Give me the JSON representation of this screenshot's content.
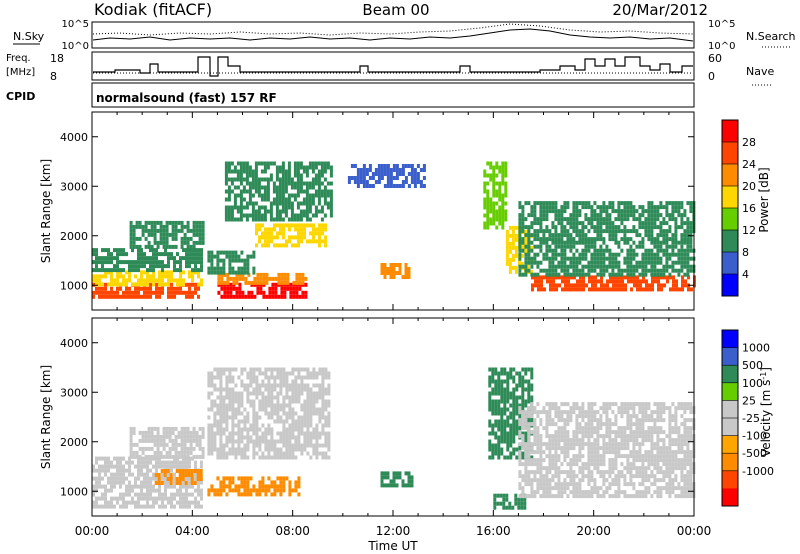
{
  "header": {
    "site": "Kodiak (fitACF)",
    "beam": "Beam 00",
    "date": "20/Mar/2012"
  },
  "summary": {
    "nsky_label": "N.Sky",
    "nsearch_label": "N.Search",
    "freq_label": "Freq.",
    "freq_unit": "[MHz]",
    "nave_label": "Nave",
    "cpid_label": "CPID",
    "cpid_text": "normalsound (fast) 157 RF",
    "noise_ticks": [
      "10^5",
      "10^0"
    ],
    "noise_ticks_right": [
      "10^5",
      "10^0"
    ],
    "freq_ticks": [
      "18",
      "8"
    ],
    "nave_ticks": [
      "60",
      "0"
    ]
  },
  "colors": {
    "power_scale": [
      "#0000ff",
      "#3a5fcd",
      "#2e8b57",
      "#66cd00",
      "#ffd700",
      "#ff8c00",
      "#ff4500",
      "#ff0000"
    ],
    "velocity_scale": [
      "#ff0000",
      "#ff4500",
      "#ff8c00",
      "#ffa500",
      "#c8c8c8",
      "#c8c8c8",
      "#66cd00",
      "#2e8b57",
      "#3a5fcd",
      "#0000ff"
    ]
  },
  "chart_data": [
    {
      "type": "heatmap",
      "title": "",
      "xlabel": "Time UT",
      "ylabel": "Slant Range [km]",
      "xlim": [
        0,
        24
      ],
      "ylim": [
        500,
        4500
      ],
      "x_ticks": [
        "00:00",
        "04:00",
        "08:00",
        "12:00",
        "16:00",
        "20:00",
        "00:00"
      ],
      "y_ticks": [
        "1000",
        "2000",
        "3000",
        "4000"
      ],
      "colorbar": {
        "label": "Power [dB]",
        "ticks": [
          "28",
          "24",
          "20",
          "16",
          "12",
          "8",
          "4"
        ],
        "range": [
          0,
          32
        ]
      },
      "regions": [
        {
          "t0": 0.0,
          "t1": 4.4,
          "r0": 800,
          "r1": 1050,
          "level": 26
        },
        {
          "t0": 0.0,
          "t1": 4.4,
          "r0": 1050,
          "r1": 1300,
          "level": 18
        },
        {
          "t0": 0.0,
          "t1": 4.4,
          "r0": 1300,
          "r1": 1750,
          "level": 9
        },
        {
          "t0": 1.5,
          "t1": 4.4,
          "r0": 1750,
          "r1": 2300,
          "level": 10
        },
        {
          "t0": 5.0,
          "t1": 8.5,
          "r0": 800,
          "r1": 1050,
          "level": 29
        },
        {
          "t0": 5.0,
          "t1": 8.5,
          "r0": 1050,
          "r1": 1250,
          "level": 20
        },
        {
          "t0": 4.6,
          "t1": 6.5,
          "r0": 1250,
          "r1": 1700,
          "level": 8
        },
        {
          "t0": 6.5,
          "t1": 9.3,
          "r0": 1800,
          "r1": 2250,
          "level": 17
        },
        {
          "t0": 5.3,
          "t1": 9.5,
          "r0": 2300,
          "r1": 3500,
          "level": 10
        },
        {
          "t0": 11.5,
          "t1": 12.6,
          "r0": 1150,
          "r1": 1450,
          "level": 22
        },
        {
          "t0": 10.2,
          "t1": 13.2,
          "r0": 3000,
          "r1": 3450,
          "level": 7
        },
        {
          "t0": 15.6,
          "t1": 16.5,
          "r0": 2200,
          "r1": 3500,
          "level": 13
        },
        {
          "t0": 16.5,
          "t1": 17.5,
          "r0": 1300,
          "r1": 2200,
          "level": 18
        },
        {
          "t0": 17.5,
          "t1": 24.0,
          "r0": 900,
          "r1": 1200,
          "level": 25
        },
        {
          "t0": 17.0,
          "t1": 24.0,
          "r0": 1200,
          "r1": 1900,
          "level": 10
        },
        {
          "t0": 17.0,
          "t1": 24.0,
          "r0": 1900,
          "r1": 2700,
          "level": 9
        }
      ]
    },
    {
      "type": "heatmap",
      "title": "",
      "xlabel": "Time UT",
      "ylabel": "Slant Range [km]",
      "xlim": [
        0,
        24
      ],
      "ylim": [
        500,
        4500
      ],
      "x_ticks": [
        "00:00",
        "04:00",
        "08:00",
        "12:00",
        "16:00",
        "20:00",
        "00:00"
      ],
      "y_ticks": [
        "1000",
        "2000",
        "3000",
        "4000"
      ],
      "colorbar": {
        "label": "Velocity [m s^-1]",
        "ticks": [
          "1000",
          "500",
          "100",
          "25",
          "-25",
          "-100",
          "-500",
          "-1000"
        ],
        "range": [
          -1000,
          1000
        ]
      },
      "regions": [
        {
          "t0": 0.0,
          "t1": 4.4,
          "r0": 700,
          "r1": 1700,
          "level": 0
        },
        {
          "t0": 1.5,
          "t1": 4.4,
          "r0": 1700,
          "r1": 2300,
          "level": 0
        },
        {
          "t0": 2.5,
          "t1": 4.3,
          "r0": 1200,
          "r1": 1450,
          "level": -150
        },
        {
          "t0": 4.6,
          "t1": 9.5,
          "r0": 1700,
          "r1": 3500,
          "level": 0
        },
        {
          "t0": 4.6,
          "t1": 8.3,
          "r0": 900,
          "r1": 1300,
          "level": -150
        },
        {
          "t0": 11.5,
          "t1": 12.7,
          "r0": 1100,
          "r1": 1400,
          "level": 200
        },
        {
          "t0": 15.8,
          "t1": 17.5,
          "r0": 1700,
          "r1": 3500,
          "level": 150
        },
        {
          "t0": 16.0,
          "t1": 17.3,
          "r0": 700,
          "r1": 950,
          "level": 150
        },
        {
          "t0": 17.0,
          "t1": 24.0,
          "r0": 900,
          "r1": 2800,
          "level": 0
        }
      ]
    }
  ]
}
